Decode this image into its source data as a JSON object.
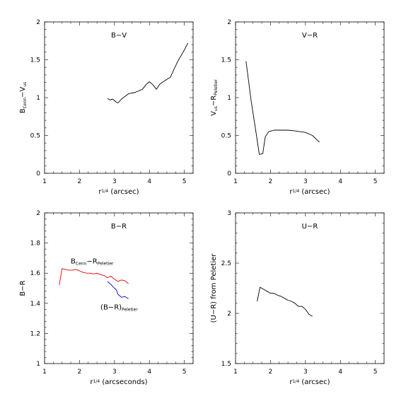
{
  "chart_data": [
    {
      "type": "line",
      "title": "B−V",
      "xlabel": {
        "base": "r",
        "sup": "1/4",
        "rest": " (arcsec)"
      },
      "ylabel": {
        "parts": [
          [
            "B",
            ""
          ],
          [
            "Cenn",
            "sub"
          ],
          [
            "−V",
            ""
          ],
          [
            "us",
            "sub"
          ]
        ]
      },
      "xlim": [
        1,
        5.25
      ],
      "ylim": [
        0,
        2
      ],
      "xticks": [
        1,
        2,
        3,
        4,
        5
      ],
      "yticks": [
        0,
        0.5,
        1,
        1.5,
        2
      ],
      "yticklabels": [
        "0",
        "0.5",
        "1",
        "1.5",
        "2"
      ],
      "series": [
        {
          "color": "#000000",
          "x": [
            2.8,
            2.87,
            2.95,
            3.05,
            3.1,
            3.2,
            3.4,
            3.6,
            3.8,
            3.9,
            4.0,
            4.1,
            4.2,
            4.3,
            4.5,
            4.6,
            4.8,
            5.0,
            5.1
          ],
          "y": [
            0.99,
            0.97,
            0.98,
            0.94,
            0.93,
            0.98,
            1.05,
            1.07,
            1.11,
            1.17,
            1.21,
            1.17,
            1.11,
            1.18,
            1.24,
            1.27,
            1.47,
            1.63,
            1.72
          ]
        }
      ]
    },
    {
      "type": "line",
      "title": "V−R",
      "xlabel": {
        "base": "r",
        "sup": "1/4",
        "rest": " (arcsec)"
      },
      "ylabel": {
        "parts": [
          [
            "V",
            ""
          ],
          [
            "us",
            "sub"
          ],
          [
            "−R",
            ""
          ],
          [
            "Peletier",
            "sub"
          ]
        ]
      },
      "xlim": [
        1,
        5.25
      ],
      "ylim": [
        0,
        2
      ],
      "xticks": [
        1,
        2,
        3,
        4,
        5
      ],
      "yticks": [
        0,
        0.5,
        1,
        1.5,
        2
      ],
      "yticklabels": [
        "0",
        "0.5",
        "1",
        "1.5",
        "2"
      ],
      "series": [
        {
          "color": "#000000",
          "x": [
            1.3,
            1.45,
            1.6,
            1.68,
            1.78,
            1.85,
            1.95,
            2.1,
            2.3,
            2.5,
            2.7,
            2.85,
            3.0,
            3.2,
            3.4
          ],
          "y": [
            1.48,
            0.95,
            0.5,
            0.25,
            0.26,
            0.48,
            0.55,
            0.57,
            0.57,
            0.57,
            0.56,
            0.55,
            0.54,
            0.5,
            0.41
          ]
        }
      ]
    },
    {
      "type": "line",
      "title": "B−R",
      "xlabel": {
        "base": "r",
        "sup": "1/4",
        "rest": " (arcseconds)"
      },
      "ylabel": {
        "parts": [
          [
            "B−R",
            ""
          ]
        ]
      },
      "xlim": [
        1,
        5.25
      ],
      "ylim": [
        1,
        2
      ],
      "xticks": [
        1,
        2,
        3,
        4,
        5
      ],
      "yticks": [
        1,
        1.2,
        1.4,
        1.6,
        1.8,
        2
      ],
      "yticklabels": [
        "1",
        "1.2",
        "1.4",
        "1.6",
        "1.8",
        "2"
      ],
      "series": [
        {
          "color": "#e00000",
          "label": [
            [
              "B",
              ""
            ],
            [
              "Cenn",
              "sub"
            ],
            [
              "−R",
              ""
            ],
            [
              "Peletier",
              "sub"
            ]
          ],
          "label_at": [
            1.75,
            1.665
          ],
          "x": [
            1.42,
            1.5,
            1.6,
            1.7,
            1.8,
            1.9,
            2.0,
            2.1,
            2.2,
            2.3,
            2.4,
            2.5,
            2.6,
            2.7,
            2.8,
            2.9,
            3.0,
            3.1,
            3.2,
            3.3,
            3.4
          ],
          "y": [
            1.52,
            1.63,
            1.625,
            1.62,
            1.62,
            1.625,
            1.615,
            1.605,
            1.6,
            1.6,
            1.595,
            1.6,
            1.59,
            1.585,
            1.57,
            1.58,
            1.56,
            1.545,
            1.555,
            1.55,
            1.53
          ]
        },
        {
          "color": "#0000cc",
          "label": [
            [
              "(B−R)",
              ""
            ],
            [
              "Peletier",
              "sub"
            ]
          ],
          "label_at": [
            2.6,
            1.36
          ],
          "x": [
            2.8,
            2.9,
            3.0,
            3.05,
            3.1,
            3.2,
            3.3,
            3.4
          ],
          "y": [
            1.545,
            1.525,
            1.5,
            1.49,
            1.46,
            1.44,
            1.445,
            1.43
          ]
        }
      ]
    },
    {
      "type": "line",
      "title": "U−R",
      "xlabel": {
        "base": "r",
        "sup": "1/4",
        "rest": " (arcsec)"
      },
      "ylabel": {
        "parts": [
          [
            "(U−R) from Peletier",
            ""
          ]
        ]
      },
      "xlim": [
        1,
        5.25
      ],
      "ylim": [
        1.5,
        3
      ],
      "xticks": [
        1,
        2,
        3,
        4,
        5
      ],
      "yticks": [
        1.5,
        2,
        2.5,
        3
      ],
      "yticklabels": [
        "1.5",
        "2",
        "2.5",
        "3"
      ],
      "series": [
        {
          "color": "#000000",
          "x": [
            1.62,
            1.7,
            1.8,
            1.9,
            2.0,
            2.1,
            2.2,
            2.3,
            2.4,
            2.5,
            2.6,
            2.7,
            2.8,
            2.9,
            3.0,
            3.1,
            3.2
          ],
          "y": [
            2.12,
            2.26,
            2.24,
            2.22,
            2.2,
            2.2,
            2.18,
            2.17,
            2.15,
            2.13,
            2.12,
            2.1,
            2.07,
            2.07,
            2.04,
            1.99,
            1.97
          ]
        }
      ]
    }
  ]
}
